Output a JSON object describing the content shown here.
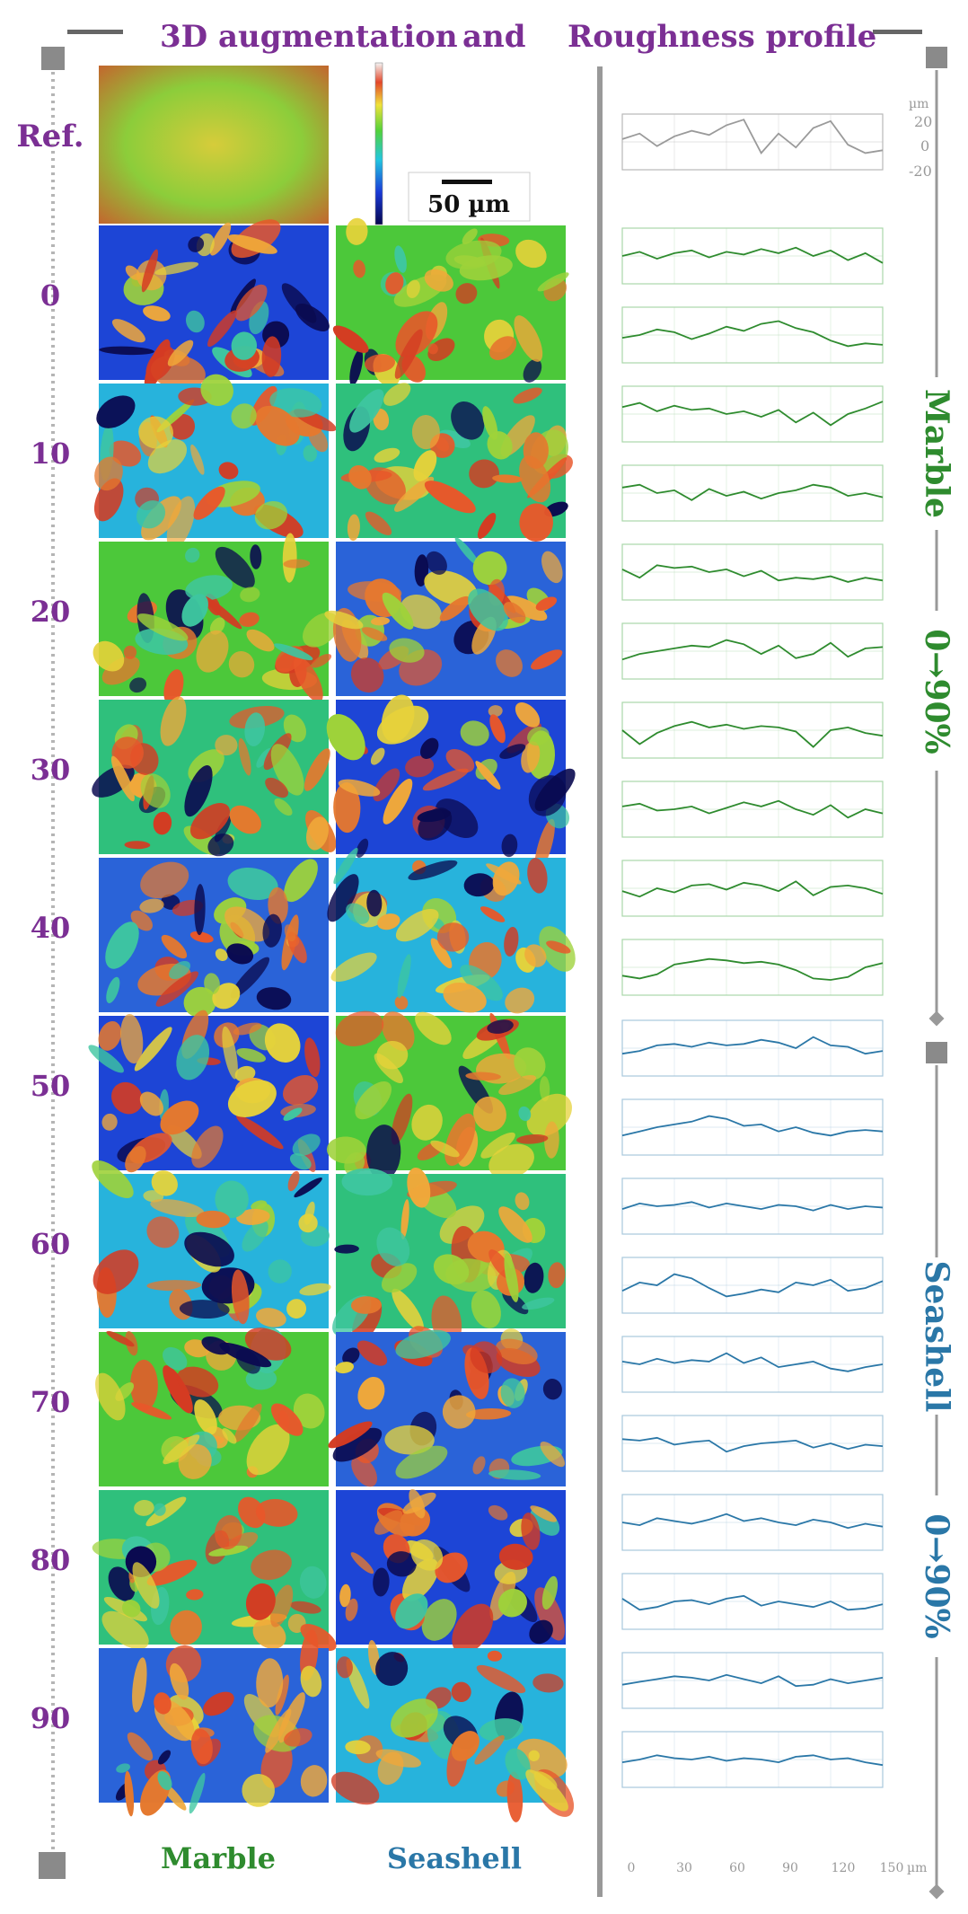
{
  "header": {
    "left": "3D augmentation",
    "middle": "and",
    "right": "Roughness profile"
  },
  "reference": {
    "label": "Ref.",
    "unit": "µm",
    "yticks": [
      "20",
      "0",
      "-20"
    ],
    "scale_bar": "50 µm"
  },
  "levels": [
    "0",
    "10",
    "20",
    "30",
    "40",
    "50",
    "60",
    "70",
    "80",
    "90"
  ],
  "columns": {
    "marble": "Marble",
    "seashell": "Seashell"
  },
  "side_labels": {
    "marble": "Marble",
    "marble_range": "0→90%",
    "seashell": "Seashell",
    "seashell_range": "0→90%"
  },
  "x_axis": {
    "ticks": [
      "0",
      "30",
      "60",
      "90",
      "120",
      "150"
    ],
    "unit": "µm"
  },
  "colors": {
    "purple": "#7b2f94",
    "marble_green": "#2e8b2e",
    "seashell_blue": "#2a77a7",
    "axis_gray": "#9a9a9a"
  },
  "chart_data": {
    "type": "line",
    "title": "Roughness profile",
    "xlabel": "µm",
    "ylabel": "µm",
    "xlim": [
      0,
      150
    ],
    "ylim": [
      -20,
      20
    ],
    "x": [
      0,
      10,
      20,
      30,
      40,
      50,
      60,
      70,
      80,
      90,
      100,
      110,
      120,
      130,
      140,
      150
    ],
    "series": [
      {
        "name": "Ref.",
        "values": [
          2,
          6,
          -3,
          4,
          8,
          5,
          12,
          16,
          -8,
          6,
          -4,
          10,
          15,
          -2,
          -8,
          -6
        ]
      },
      {
        "name": "Marble 0%",
        "values": [
          0,
          3,
          -2,
          2,
          4,
          -1,
          3,
          1,
          5,
          2,
          6,
          0,
          4,
          -3,
          2,
          -5
        ]
      },
      {
        "name": "Marble 10%",
        "values": [
          -2,
          0,
          4,
          2,
          -3,
          1,
          6,
          3,
          8,
          10,
          5,
          2,
          -4,
          -8,
          -6,
          -7
        ]
      },
      {
        "name": "Marble 20%",
        "values": [
          5,
          8,
          2,
          6,
          3,
          4,
          0,
          2,
          -2,
          3,
          -6,
          1,
          -8,
          0,
          4,
          9
        ]
      },
      {
        "name": "Marble 30%",
        "values": [
          4,
          6,
          0,
          2,
          -5,
          3,
          -2,
          1,
          -4,
          0,
          2,
          6,
          4,
          -2,
          0,
          -3
        ]
      },
      {
        "name": "Marble 40%",
        "values": [
          2,
          -4,
          5,
          3,
          4,
          0,
          2,
          -3,
          1,
          -6,
          -4,
          -5,
          -3,
          -7,
          -4,
          -6
        ]
      },
      {
        "name": "Marble 50%",
        "values": [
          -6,
          -2,
          0,
          2,
          4,
          3,
          8,
          5,
          -2,
          4,
          -5,
          -2,
          6,
          -4,
          2,
          3
        ]
      },
      {
        "name": "Marble 60%",
        "values": [
          0,
          -10,
          -2,
          3,
          6,
          2,
          4,
          1,
          3,
          2,
          -1,
          -12,
          0,
          2,
          -2,
          -4
        ]
      },
      {
        "name": "Marble 70%",
        "values": [
          2,
          4,
          -1,
          0,
          2,
          -3,
          1,
          5,
          2,
          6,
          0,
          -4,
          3,
          -6,
          0,
          -3
        ]
      },
      {
        "name": "Marble 80%",
        "values": [
          -2,
          -6,
          0,
          -3,
          2,
          3,
          -1,
          4,
          2,
          -2,
          5,
          -5,
          1,
          2,
          0,
          -4
        ]
      },
      {
        "name": "Marble 90%",
        "values": [
          -6,
          -8,
          -5,
          2,
          4,
          6,
          5,
          3,
          4,
          2,
          -2,
          -8,
          -9,
          -7,
          0,
          3
        ]
      },
      {
        "name": "Seashell 0%",
        "values": [
          -4,
          -2,
          2,
          3,
          1,
          4,
          2,
          3,
          6,
          4,
          0,
          8,
          2,
          1,
          -4,
          -2
        ]
      },
      {
        "name": "Seashell 10%",
        "values": [
          -6,
          -3,
          0,
          2,
          4,
          8,
          6,
          1,
          2,
          -3,
          0,
          -4,
          -6,
          -3,
          -2,
          -3
        ]
      },
      {
        "name": "Seashell 20%",
        "values": [
          -2,
          2,
          0,
          1,
          3,
          -1,
          2,
          0,
          -2,
          1,
          0,
          -3,
          1,
          -2,
          0,
          -1
        ]
      },
      {
        "name": "Seashell 30%",
        "values": [
          -4,
          2,
          0,
          8,
          5,
          -2,
          -8,
          -6,
          -3,
          -5,
          2,
          0,
          4,
          -4,
          -2,
          3
        ]
      },
      {
        "name": "Seashell 40%",
        "values": [
          2,
          0,
          4,
          1,
          3,
          2,
          8,
          1,
          5,
          -2,
          0,
          2,
          -3,
          -5,
          -2,
          0
        ]
      },
      {
        "name": "Seashell 50%",
        "values": [
          3,
          2,
          4,
          -1,
          1,
          2,
          -6,
          -2,
          0,
          1,
          2,
          -3,
          0,
          -4,
          -1,
          -2
        ]
      },
      {
        "name": "Seashell 60%",
        "values": [
          0,
          -2,
          3,
          1,
          -1,
          2,
          6,
          1,
          3,
          0,
          -2,
          2,
          0,
          -4,
          -1,
          -3
        ]
      },
      {
        "name": "Seashell 70%",
        "values": [
          2,
          -6,
          -4,
          0,
          1,
          -2,
          2,
          4,
          -3,
          0,
          -2,
          -4,
          0,
          -6,
          -5,
          -2
        ]
      },
      {
        "name": "Seashell 80%",
        "values": [
          -3,
          -1,
          1,
          3,
          2,
          0,
          4,
          1,
          -2,
          3,
          -4,
          -3,
          1,
          -2,
          0,
          2
        ]
      },
      {
        "name": "Seashell 90%",
        "values": [
          -2,
          0,
          3,
          1,
          0,
          2,
          -1,
          1,
          0,
          -2,
          2,
          3,
          0,
          1,
          -2,
          -4
        ]
      }
    ]
  }
}
